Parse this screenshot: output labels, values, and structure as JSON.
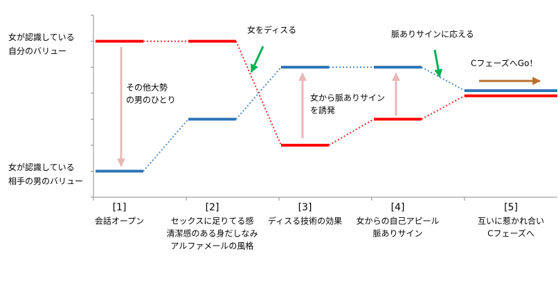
{
  "chart_data": {
    "type": "step-line",
    "categories": [
      "[1]",
      "[2]",
      "[3]",
      "[4]",
      "[5]"
    ],
    "category_notes": [
      [
        "会話オープン"
      ],
      [
        "セックスに足りてる感",
        "清潔感のある身だしなみ",
        "アルファメールの風格"
      ],
      [
        "ディスる技術の効果"
      ],
      [
        "女からの自己アピール",
        "脈ありサイン"
      ],
      [
        "互いに惹かれ合い",
        "Cフェーズへ"
      ]
    ],
    "series": [
      {
        "name": [
          "女が認識している",
          "自分のバリュー"
        ],
        "color": "#ff0000",
        "values": [
          6,
          6,
          2,
          3,
          3.9
        ]
      },
      {
        "name": [
          "女が認識している",
          "相手の男のバリュー"
        ],
        "color": "#2e75b6",
        "values": [
          1,
          3,
          5,
          5,
          4.1
        ]
      }
    ],
    "ylim": [
      0,
      7
    ],
    "yticks": [
      0,
      1,
      2,
      3,
      4,
      5,
      6,
      7
    ],
    "annotations": [
      [
        "その他大勢",
        "の男のひとり"
      ],
      [
        "女をディスる"
      ],
      [
        "女から脈ありサイン",
        "を誘発"
      ],
      [
        "脈ありサインに応える"
      ],
      [
        "CフェーズへGo！"
      ]
    ]
  }
}
